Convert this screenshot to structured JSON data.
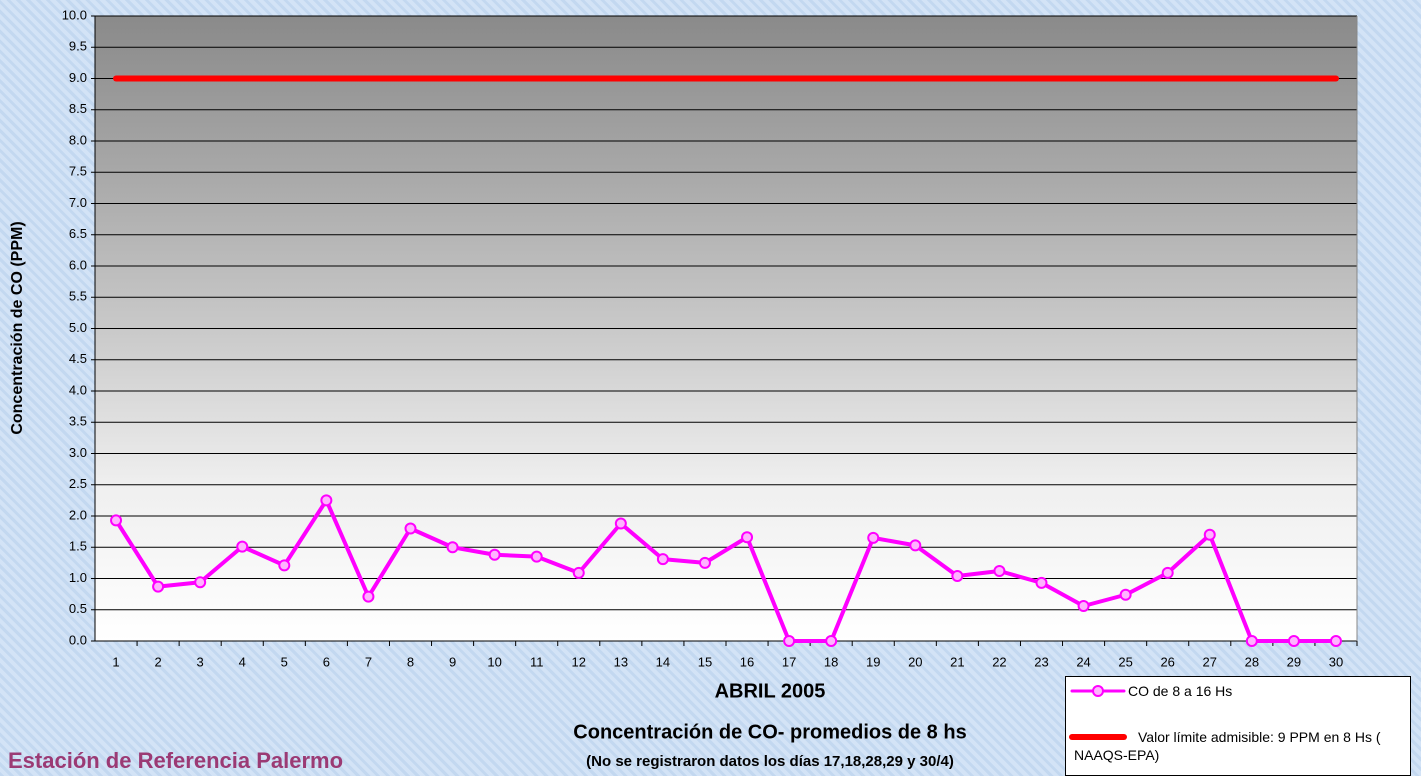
{
  "chart_data": {
    "type": "line",
    "title": "ABRIL 2005",
    "subtitle": "Concentración de CO- promedios de 8 hs",
    "note": "(No se registraron datos los días 17,18,28,29 y 30/4)",
    "station": "Estación de Referencia Palermo",
    "y_label": "Concentración de CO (PPM)",
    "categories": [
      "1",
      "2",
      "3",
      "4",
      "5",
      "6",
      "7",
      "8",
      "9",
      "10",
      "11",
      "12",
      "13",
      "14",
      "15",
      "16",
      "17",
      "18",
      "19",
      "20",
      "21",
      "22",
      "23",
      "24",
      "25",
      "26",
      "27",
      "28",
      "29",
      "30"
    ],
    "series": [
      {
        "name": "CO de 8 a 16 Hs",
        "color": "#ff00ff",
        "values": [
          1.93,
          0.87,
          0.94,
          1.51,
          1.21,
          2.25,
          0.71,
          1.8,
          1.5,
          1.38,
          1.35,
          1.09,
          1.88,
          1.31,
          1.25,
          1.66,
          0,
          0,
          1.65,
          1.53,
          1.04,
          1.12,
          0.93,
          0.56,
          0.74,
          1.09,
          1.7,
          0,
          0,
          0
        ]
      },
      {
        "name": "Valor límite admisible: 9 PPM en 8 Hs ( NAAQS-EPA)",
        "color": "#ff0000",
        "values": [
          9,
          9,
          9,
          9,
          9,
          9,
          9,
          9,
          9,
          9,
          9,
          9,
          9,
          9,
          9,
          9,
          9,
          9,
          9,
          9,
          9,
          9,
          9,
          9,
          9,
          9,
          9,
          9,
          9,
          9
        ]
      }
    ],
    "ylim": [
      0,
      10
    ],
    "yticks": [
      {
        "value": 0,
        "label": "0.0"
      },
      {
        "value": 0.5,
        "label": "0.5"
      },
      {
        "value": 1,
        "label": "1.0"
      },
      {
        "value": 1.5,
        "label": "1.5"
      },
      {
        "value": 2,
        "label": "2.0"
      },
      {
        "value": 2.5,
        "label": "2.5"
      },
      {
        "value": 3,
        "label": "3.0"
      },
      {
        "value": 3.5,
        "label": "3.5"
      },
      {
        "value": 4,
        "label": "4.0"
      },
      {
        "value": 4.5,
        "label": "4.5"
      },
      {
        "value": 5,
        "label": "5.0"
      },
      {
        "value": 5.5,
        "label": "5.5"
      },
      {
        "value": 6,
        "label": "6.0"
      },
      {
        "value": 6.5,
        "label": "6.5"
      },
      {
        "value": 7,
        "label": "7.0"
      },
      {
        "value": 7.5,
        "label": "7.5"
      },
      {
        "value": 8,
        "label": "8.0"
      },
      {
        "value": 8.5,
        "label": "8.5"
      },
      {
        "value": 9,
        "label": "9.0"
      },
      {
        "value": 9.5,
        "label": "9.5"
      },
      {
        "value": 10,
        "label": "10.0"
      }
    ],
    "grid": true,
    "legend": "bottom-right"
  }
}
